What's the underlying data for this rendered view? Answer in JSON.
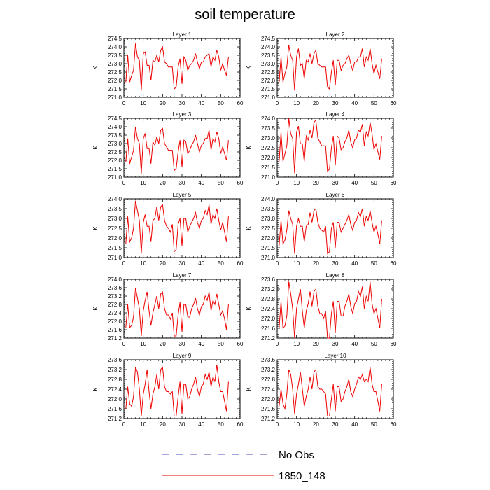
{
  "chart_data": {
    "type": "line",
    "title": "soil temperature",
    "x_ticks": [
      0,
      10,
      20,
      30,
      40,
      50,
      60
    ],
    "xlim": [
      0,
      60
    ],
    "x": [
      1,
      2,
      3,
      4,
      5,
      6,
      7,
      8,
      9,
      10,
      11,
      12,
      13,
      14,
      15,
      16,
      17,
      18,
      19,
      20,
      21,
      22,
      23,
      24,
      25,
      26,
      27,
      28,
      29,
      30,
      31,
      32,
      33,
      34,
      35,
      36,
      37,
      38,
      39,
      40,
      41,
      42,
      43,
      44,
      45,
      46,
      47,
      48,
      49,
      50,
      51,
      52,
      53,
      54
    ],
    "legend": [
      {
        "label": "No Obs",
        "color": "#4a4ab8",
        "style": "dashed"
      },
      {
        "label": "1850_148",
        "color": "#ee0000",
        "style": "solid"
      }
    ],
    "panels": [
      {
        "title": "Layer 1",
        "ylabel": "K",
        "ylim": [
          271.0,
          274.5
        ],
        "yticks": [
          "271.0",
          "271.5",
          "272.0",
          "272.5",
          "273.0",
          "273.5",
          "274.0",
          "274.5"
        ],
        "series": [
          {
            "name": "1850_148",
            "color": "#ee0000",
            "values": [
              271.9,
              273.5,
              271.9,
              272.3,
              272.6,
              274.2,
              273.4,
              273.2,
              271.4,
              273.6,
              273.7,
              272.9,
              272.9,
              272.0,
              273.2,
              273.1,
              273.5,
              273.1,
              273.8,
              274.0,
              273.1,
              273.0,
              272.8,
              272.8,
              272.8,
              271.5,
              271.6,
              272.8,
              273.3,
              271.8,
              273.4,
              273.2,
              272.6,
              272.9,
              273.0,
              273.2,
              273.6,
              273.1,
              272.7,
              273.1,
              273.1,
              273.4,
              273.5,
              273.6,
              272.8,
              273.4,
              273.2,
              273.8,
              273.4,
              272.6,
              273.0,
              272.6,
              272.3,
              273.4
            ]
          }
        ]
      },
      {
        "title": "Layer 2",
        "ylabel": "K",
        "ylim": [
          271.0,
          274.5
        ],
        "yticks": [
          "271.0",
          "271.5",
          "272.0",
          "272.5",
          "273.0",
          "273.5",
          "274.0",
          "274.5"
        ],
        "series": [
          {
            "name": "1850_148",
            "color": "#ee0000",
            "values": [
              271.9,
              273.4,
              271.9,
              272.4,
              272.8,
              274.1,
              273.5,
              273.2,
              271.4,
              273.4,
              273.9,
              272.9,
              273.0,
              272.1,
              273.2,
              273.1,
              273.6,
              273.0,
              273.6,
              273.8,
              273.0,
              272.9,
              272.8,
              272.8,
              272.8,
              271.6,
              271.5,
              272.5,
              273.2,
              271.7,
              273.2,
              273.2,
              272.6,
              272.9,
              273.0,
              273.3,
              273.5,
              273.0,
              272.6,
              273.1,
              273.1,
              273.4,
              273.4,
              273.9,
              272.8,
              273.4,
              273.2,
              273.9,
              273.0,
              272.4,
              272.9,
              272.5,
              272.1,
              273.3
            ]
          }
        ]
      },
      {
        "title": "Layer 3",
        "ylabel": "K",
        "ylim": [
          271.0,
          274.5
        ],
        "yticks": [
          "271.0",
          "271.5",
          "272.0",
          "272.5",
          "273.0",
          "273.5",
          "274.0",
          "274.5"
        ],
        "series": [
          {
            "name": "1850_148",
            "color": "#ee0000",
            "values": [
              271.9,
              273.3,
              271.8,
              272.2,
              272.6,
              274.0,
              273.3,
              273.0,
              271.2,
              273.3,
              273.6,
              272.7,
              272.7,
              271.8,
              273.1,
              272.9,
              273.4,
              273.0,
              273.8,
              273.9,
              273.0,
              272.8,
              272.6,
              272.6,
              272.6,
              271.4,
              271.5,
              272.5,
              273.2,
              271.6,
              273.2,
              273.1,
              272.4,
              272.6,
              272.9,
              273.1,
              273.5,
              273.0,
              272.5,
              272.9,
              273.0,
              273.3,
              273.3,
              273.8,
              272.6,
              273.3,
              273.1,
              273.7,
              273.3,
              272.4,
              272.8,
              272.4,
              272.0,
              273.2
            ]
          }
        ]
      },
      {
        "title": "Layer 4",
        "ylabel": "K",
        "ylim": [
          271.0,
          274.0
        ],
        "yticks": [
          "271.0",
          "271.5",
          "272.0",
          "272.5",
          "273.0",
          "273.5",
          "274.0"
        ],
        "series": [
          {
            "name": "1850_148",
            "color": "#ee0000",
            "values": [
              271.8,
              273.3,
              271.8,
              272.2,
              272.6,
              274.0,
              273.2,
              273.0,
              271.2,
              273.3,
              273.6,
              272.7,
              272.7,
              271.8,
              273.1,
              272.9,
              273.4,
              273.0,
              273.8,
              273.9,
              273.0,
              272.8,
              272.6,
              272.6,
              272.6,
              271.3,
              271.4,
              272.5,
              273.1,
              271.6,
              273.1,
              273.0,
              272.4,
              272.5,
              272.8,
              273.0,
              273.4,
              272.8,
              272.5,
              272.9,
              273.0,
              273.4,
              273.3,
              273.7,
              272.6,
              273.3,
              273.1,
              273.8,
              273.2,
              272.4,
              272.7,
              272.3,
              271.9,
              273.1
            ]
          }
        ]
      },
      {
        "title": "Layer 5",
        "ylabel": "K",
        "ylim": [
          271.0,
          274.0
        ],
        "yticks": [
          "271.0",
          "271.5",
          "272.0",
          "272.5",
          "273.0",
          "273.5",
          "274.0"
        ],
        "series": [
          {
            "name": "1850_148",
            "color": "#ee0000",
            "values": [
              271.7,
              273.1,
              271.8,
              272.0,
              272.5,
              273.9,
              273.4,
              272.9,
              271.2,
              272.8,
              273.2,
              272.6,
              272.6,
              271.8,
              272.9,
              273.0,
              273.6,
              272.9,
              273.6,
              273.7,
              272.9,
              272.6,
              272.5,
              272.3,
              272.7,
              271.3,
              271.4,
              272.7,
              273.0,
              271.6,
              273.0,
              273.0,
              272.3,
              272.6,
              272.8,
              273.0,
              273.3,
              272.8,
              272.5,
              272.9,
              273.0,
              273.4,
              273.2,
              273.7,
              272.7,
              273.2,
              273.0,
              273.5,
              272.9,
              272.4,
              272.8,
              272.3,
              271.8,
              273.1
            ]
          }
        ]
      },
      {
        "title": "Layer 6",
        "ylabel": "K",
        "ylim": [
          271.0,
          274.0
        ],
        "yticks": [
          "271.0",
          "271.5",
          "272.0",
          "272.5",
          "273.0",
          "273.5",
          "274.0"
        ],
        "series": [
          {
            "name": "1850_148",
            "color": "#ee0000",
            "values": [
              271.6,
              272.9,
              271.7,
              271.9,
              272.4,
              273.4,
              273.0,
              272.7,
              271.2,
              272.6,
              273.0,
              272.6,
              272.6,
              271.8,
              272.6,
              272.7,
              273.3,
              272.8,
              273.4,
              273.5,
              272.8,
              272.5,
              272.4,
              272.3,
              272.6,
              271.2,
              271.3,
              272.5,
              272.8,
              271.5,
              272.8,
              272.8,
              272.3,
              272.5,
              272.7,
              272.9,
              273.2,
              272.7,
              272.4,
              272.8,
              272.9,
              273.3,
              273.1,
              273.5,
              272.6,
              273.1,
              272.9,
              273.4,
              272.8,
              272.3,
              272.6,
              272.2,
              271.7,
              272.9
            ]
          }
        ]
      },
      {
        "title": "Layer 7",
        "ylabel": "K",
        "ylim": [
          271.2,
          274.0
        ],
        "yticks": [
          "271.2",
          "271.6",
          "272.0",
          "272.4",
          "272.8",
          "273.2",
          "273.6",
          "274.0"
        ],
        "series": [
          {
            "name": "1850_148",
            "color": "#ee0000",
            "values": [
              271.7,
              272.8,
              271.7,
              271.8,
              272.2,
              273.6,
              273.1,
              272.6,
              271.3,
              272.5,
              273.0,
              273.4,
              272.5,
              271.8,
              272.4,
              272.8,
              273.2,
              272.6,
              273.3,
              273.4,
              272.6,
              272.3,
              272.3,
              272.1,
              272.4,
              271.3,
              271.3,
              272.3,
              272.9,
              271.5,
              272.8,
              272.8,
              272.2,
              272.2,
              272.6,
              272.8,
              273.1,
              272.6,
              272.3,
              272.7,
              272.8,
              273.2,
              273.0,
              273.4,
              272.5,
              273.0,
              272.8,
              273.3,
              272.8,
              272.3,
              272.5,
              272.1,
              271.6,
              272.8
            ]
          }
        ]
      },
      {
        "title": "Layer 8",
        "ylabel": "K",
        "ylim": [
          271.2,
          273.6
        ],
        "yticks": [
          "271.2",
          "271.6",
          "272.0",
          "272.4",
          "272.8",
          "273.2",
          "273.6"
        ],
        "series": [
          {
            "name": "1850_148",
            "color": "#ee0000",
            "values": [
              271.6,
              272.7,
              271.6,
              271.7,
              272.1,
              273.5,
              273.0,
              272.4,
              271.2,
              272.4,
              272.8,
              273.2,
              272.3,
              271.6,
              272.3,
              272.6,
              273.1,
              272.5,
              273.1,
              273.2,
              272.5,
              272.2,
              272.2,
              272.0,
              272.3,
              271.2,
              271.2,
              272.2,
              272.7,
              271.4,
              272.7,
              272.7,
              272.1,
              272.1,
              272.5,
              272.7,
              273.0,
              272.5,
              272.2,
              272.6,
              272.7,
              273.1,
              272.9,
              273.3,
              272.4,
              272.9,
              272.7,
              273.5,
              272.6,
              272.2,
              272.4,
              272.0,
              271.6,
              272.8
            ]
          }
        ]
      },
      {
        "title": "Layer 9",
        "ylabel": "K",
        "ylim": [
          271.2,
          273.6
        ],
        "yticks": [
          "271.2",
          "271.6",
          "272.0",
          "272.4",
          "272.8",
          "273.2",
          "273.6"
        ],
        "series": [
          {
            "name": "1850_148",
            "color": "#ee0000",
            "values": [
              271.6,
              272.5,
              271.8,
              271.7,
              272.1,
              273.3,
              273.1,
              272.4,
              271.3,
              272.2,
              272.6,
              273.2,
              272.3,
              271.6,
              272.2,
              272.5,
              273.0,
              272.4,
              273.2,
              273.3,
              272.5,
              272.3,
              272.3,
              272.2,
              272.3,
              271.3,
              271.3,
              272.1,
              272.7,
              271.4,
              272.6,
              272.6,
              272.0,
              272.1,
              272.4,
              272.6,
              272.9,
              272.4,
              272.1,
              272.5,
              272.6,
              273.0,
              272.8,
              273.1,
              272.5,
              272.9,
              272.7,
              273.4,
              272.7,
              272.3,
              272.3,
              271.9,
              271.5,
              272.7
            ]
          }
        ]
      },
      {
        "title": "Layer 10",
        "ylabel": "K",
        "ylim": [
          271.2,
          273.6
        ],
        "yticks": [
          "271.2",
          "271.6",
          "272.0",
          "272.4",
          "272.8",
          "273.2",
          "273.6"
        ],
        "series": [
          {
            "name": "1850_148",
            "color": "#ee0000",
            "values": [
              271.7,
              272.4,
              271.8,
              271.6,
              272.2,
              273.2,
              273.0,
              272.4,
              271.4,
              272.2,
              272.6,
              273.1,
              272.4,
              271.7,
              272.1,
              272.4,
              272.9,
              272.4,
              273.1,
              273.2,
              272.5,
              272.4,
              272.4,
              272.3,
              272.2,
              271.3,
              271.3,
              272.0,
              272.6,
              271.5,
              272.5,
              272.5,
              271.9,
              272.0,
              272.3,
              272.5,
              272.8,
              272.3,
              272.1,
              272.4,
              272.6,
              272.9,
              272.8,
              273.0,
              272.7,
              272.8,
              272.7,
              273.3,
              272.6,
              272.3,
              272.3,
              271.9,
              271.5,
              272.6
            ]
          }
        ]
      }
    ]
  }
}
